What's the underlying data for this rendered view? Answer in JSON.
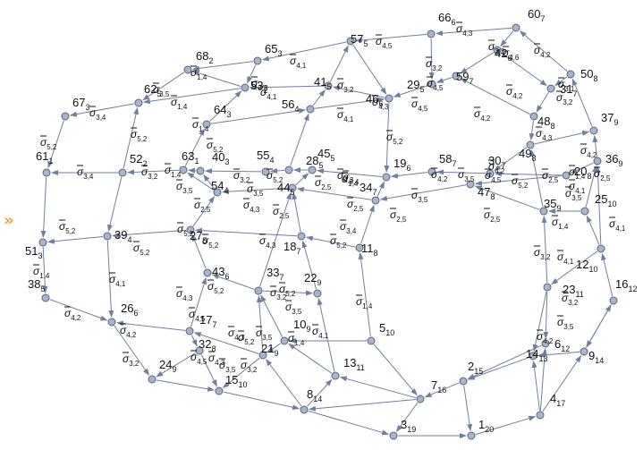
{
  "expander": {
    "glyph": "»",
    "color": "#e8a33c"
  },
  "colors": {
    "node_fill": "#a8b4c8",
    "node_stroke": "#566480",
    "edge": "#6f7f9f",
    "text": "#111111"
  },
  "graph": {
    "vertices": [
      {
        "id": "v66",
        "num": "66",
        "sub": "6"
      },
      {
        "id": "v60",
        "num": "60",
        "sub": "7"
      },
      {
        "id": "v57",
        "num": "57",
        "sub": "5"
      },
      {
        "id": "v65",
        "num": "65",
        "sub": "3"
      },
      {
        "id": "v68",
        "num": "68",
        "sub": "2"
      },
      {
        "id": "v42",
        "num": "42",
        "sub": "6"
      },
      {
        "id": "v50",
        "num": "50",
        "sub": "8"
      },
      {
        "id": "v59",
        "num": "59",
        "sub": "7"
      },
      {
        "id": "v29",
        "num": "29",
        "sub": "5"
      },
      {
        "id": "v41",
        "num": "41",
        "sub": "5"
      },
      {
        "id": "v53",
        "num": "53",
        "sub": "2"
      },
      {
        "id": "v62",
        "num": "62",
        "sub": "5"
      },
      {
        "id": "v67",
        "num": "67",
        "sub": "3"
      },
      {
        "id": "v46",
        "num": "46",
        "sub": "6"
      },
      {
        "id": "v56",
        "num": "56",
        "sub": "4"
      },
      {
        "id": "v31",
        "num": "31",
        "sub": "7"
      },
      {
        "id": "v37",
        "num": "37",
        "sub": "9"
      },
      {
        "id": "v64",
        "num": "64",
        "sub": "3"
      },
      {
        "id": "v48",
        "num": "48",
        "sub": "8"
      },
      {
        "id": "v61",
        "num": "61",
        "sub": "1"
      },
      {
        "id": "v52",
        "num": "52",
        "sub": "2"
      },
      {
        "id": "v63",
        "num": "63",
        "sub": "1"
      },
      {
        "id": "v40",
        "num": "40",
        "sub": "3"
      },
      {
        "id": "v55",
        "num": "55",
        "sub": "4"
      },
      {
        "id": "v45",
        "num": "45",
        "sub": "5"
      },
      {
        "id": "v28",
        "num": "28",
        "sub": "5"
      },
      {
        "id": "v19",
        "num": "19",
        "sub": "6"
      },
      {
        "id": "v58",
        "num": "58",
        "sub": "7"
      },
      {
        "id": "v30",
        "num": "30",
        "sub": "7"
      },
      {
        "id": "v49",
        "num": "49",
        "sub": "8"
      },
      {
        "id": "v36",
        "num": "36",
        "sub": "9"
      },
      {
        "id": "v20",
        "num": "20",
        "sub": "8"
      },
      {
        "id": "v54",
        "num": "54",
        "sub": "4"
      },
      {
        "id": "v44",
        "num": "44",
        "sub": "5"
      },
      {
        "id": "v34",
        "num": "34",
        "sub": "7"
      },
      {
        "id": "v47",
        "num": "47",
        "sub": "8"
      },
      {
        "id": "v35",
        "num": "35",
        "sub": "9"
      },
      {
        "id": "v25",
        "num": "25",
        "sub": "10"
      },
      {
        "id": "v39",
        "num": "39",
        "sub": "4"
      },
      {
        "id": "v51",
        "num": "51",
        "sub": "3"
      },
      {
        "id": "v27",
        "num": "27",
        "sub": "5"
      },
      {
        "id": "v18",
        "num": "18",
        "sub": "7"
      },
      {
        "id": "v11",
        "num": "11",
        "sub": "8"
      },
      {
        "id": "v12",
        "num": "12",
        "sub": "10"
      },
      {
        "id": "v43",
        "num": "43",
        "sub": "6"
      },
      {
        "id": "v33",
        "num": "33",
        "sub": "7"
      },
      {
        "id": "v22",
        "num": "22",
        "sub": "9"
      },
      {
        "id": "v38",
        "num": "38",
        "sub": "5"
      },
      {
        "id": "v26",
        "num": "26",
        "sub": "6"
      },
      {
        "id": "v23",
        "num": "23",
        "sub": "11"
      },
      {
        "id": "v16",
        "num": "16",
        "sub": "12"
      },
      {
        "id": "v17",
        "num": "17",
        "sub": "7"
      },
      {
        "id": "v10",
        "num": "10",
        "sub": "9"
      },
      {
        "id": "v5",
        "num": "5",
        "sub": "10"
      },
      {
        "id": "v32",
        "num": "32",
        "sub": "8"
      },
      {
        "id": "v21",
        "num": "21",
        "sub": "9"
      },
      {
        "id": "v6",
        "num": "6",
        "sub": "12"
      },
      {
        "id": "v14",
        "num": "14",
        "sub": "13"
      },
      {
        "id": "v9",
        "num": "9",
        "sub": "14"
      },
      {
        "id": "v13",
        "num": "13",
        "sub": "11"
      },
      {
        "id": "v24",
        "num": "24",
        "sub": "9"
      },
      {
        "id": "v15",
        "num": "15",
        "sub": "10"
      },
      {
        "id": "v2",
        "num": "2",
        "sub": "15"
      },
      {
        "id": "v7",
        "num": "7",
        "sub": "16"
      },
      {
        "id": "v8",
        "num": "8",
        "sub": "14"
      },
      {
        "id": "v4",
        "num": "4",
        "sub": "17"
      },
      {
        "id": "v3",
        "num": "3",
        "sub": "19"
      },
      {
        "id": "v1",
        "num": "1",
        "sub": "20"
      }
    ],
    "edge_labels": [
      {
        "id": "e1",
        "sub": "4,3"
      },
      {
        "id": "e2",
        "sub": "4,5"
      },
      {
        "id": "e3",
        "sub": "4,1"
      },
      {
        "id": "e4",
        "sub": "1,4"
      },
      {
        "id": "e5",
        "sub": "3,2"
      },
      {
        "id": "e6",
        "sub": "4,2"
      },
      {
        "id": "e7",
        "sub": "4,6"
      },
      {
        "id": "e8",
        "sub": "3,2"
      },
      {
        "id": "e9",
        "sub": "3,4"
      },
      {
        "id": "e10",
        "sub": "3,5"
      },
      {
        "id": "e11",
        "sub": "1,4"
      },
      {
        "id": "e12",
        "sub": "3,2"
      },
      {
        "id": "e13",
        "sub": "4,1"
      },
      {
        "id": "e14",
        "sub": "3,2"
      },
      {
        "id": "e15",
        "sub": "4,2"
      },
      {
        "id": "e16",
        "sub": "3,1"
      },
      {
        "id": "e17",
        "sub": "3,2"
      },
      {
        "id": "e18",
        "sub": "5,2"
      },
      {
        "id": "e19",
        "sub": "5,2"
      },
      {
        "id": "e20",
        "sub": "1,4"
      },
      {
        "id": "e21",
        "sub": "5,2"
      },
      {
        "id": "e22",
        "sub": "4,1"
      },
      {
        "id": "e23",
        "sub": "4,3"
      },
      {
        "id": "e24",
        "sub": "4,5"
      },
      {
        "id": "e25",
        "sub": "4,5"
      },
      {
        "id": "e26",
        "sub": "4,2"
      },
      {
        "id": "e27",
        "sub": "4,3"
      },
      {
        "id": "e28",
        "sub": "5,2"
      },
      {
        "id": "e29",
        "sub": "3,4"
      },
      {
        "id": "e30",
        "sub": "3,2"
      },
      {
        "id": "e31",
        "sub": "1,4"
      },
      {
        "id": "e32",
        "sub": "3,2"
      },
      {
        "id": "e33",
        "sub": "3,5"
      },
      {
        "id": "e34",
        "sub": "5,2"
      },
      {
        "id": "e35",
        "sub": "3,5"
      },
      {
        "id": "e36",
        "sub": "4,2"
      },
      {
        "id": "e37",
        "sub": "3,5"
      },
      {
        "id": "e38",
        "sub": "3,5"
      },
      {
        "id": "e39",
        "sub": "4,2"
      },
      {
        "id": "e40",
        "sub": "4,5"
      },
      {
        "id": "e41",
        "sub": "5,2"
      },
      {
        "id": "e42",
        "sub": "2,5"
      },
      {
        "id": "e43",
        "sub": "1,4"
      },
      {
        "id": "e44",
        "sub": "4,1"
      },
      {
        "id": "e45",
        "sub": "4,2"
      },
      {
        "id": "e46",
        "sub": "2,5"
      },
      {
        "id": "e47",
        "sub": "3,5"
      },
      {
        "id": "e48",
        "sub": "4,3"
      },
      {
        "id": "e49",
        "sub": "3,4"
      },
      {
        "id": "e50",
        "sub": "1,4"
      },
      {
        "id": "e51",
        "sub": "2,5"
      },
      {
        "id": "e52",
        "sub": "2,5"
      },
      {
        "id": "e53",
        "sub": "4,3"
      },
      {
        "id": "e54",
        "sub": "2,5"
      },
      {
        "id": "e55",
        "sub": "2,5"
      },
      {
        "id": "e56",
        "sub": "2,5"
      },
      {
        "id": "e57",
        "sub": "2,5"
      },
      {
        "id": "e58",
        "sub": "1,4"
      },
      {
        "id": "e59",
        "sub": "4,1"
      },
      {
        "id": "e60",
        "sub": "5,2"
      },
      {
        "id": "e61",
        "sub": "5,2"
      },
      {
        "id": "e62",
        "sub": "4,3"
      },
      {
        "id": "e63",
        "sub": "3,4"
      },
      {
        "id": "e64",
        "sub": "5,2"
      },
      {
        "id": "e65",
        "sub": "5,2"
      },
      {
        "id": "e66",
        "sub": "5,2"
      },
      {
        "id": "e67",
        "sub": "1,4"
      },
      {
        "id": "e68",
        "sub": "4,1"
      },
      {
        "id": "e69",
        "sub": "4,3"
      },
      {
        "id": "e70",
        "sub": "5,2"
      },
      {
        "id": "e71",
        "sub": "5,2"
      },
      {
        "id": "e72",
        "sub": "3,2"
      },
      {
        "id": "e73",
        "sub": "3,5"
      },
      {
        "id": "e74",
        "sub": "1,4"
      },
      {
        "id": "e75",
        "sub": "3,2"
      },
      {
        "id": "e76",
        "sub": "4,1"
      },
      {
        "id": "e77",
        "sub": "3,2"
      },
      {
        "id": "e78",
        "sub": "4,2"
      },
      {
        "id": "e79",
        "sub": "4,2"
      },
      {
        "id": "e80",
        "sub": "4,5"
      },
      {
        "id": "e81",
        "sub": "4,3"
      },
      {
        "id": "e82",
        "sub": "5,2"
      },
      {
        "id": "e83",
        "sub": "3,5"
      },
      {
        "id": "e84",
        "sub": "1,4"
      },
      {
        "id": "e85",
        "sub": "4,1"
      },
      {
        "id": "e86",
        "sub": "3,5"
      },
      {
        "id": "e87",
        "sub": "4,2"
      },
      {
        "id": "e88",
        "sub": "3,2"
      },
      {
        "id": "e89",
        "sub": "4,5"
      },
      {
        "id": "e90",
        "sub": "4,3"
      },
      {
        "id": "e91",
        "sub": "3,5"
      },
      {
        "id": "e92",
        "sub": "3,2"
      }
    ]
  }
}
